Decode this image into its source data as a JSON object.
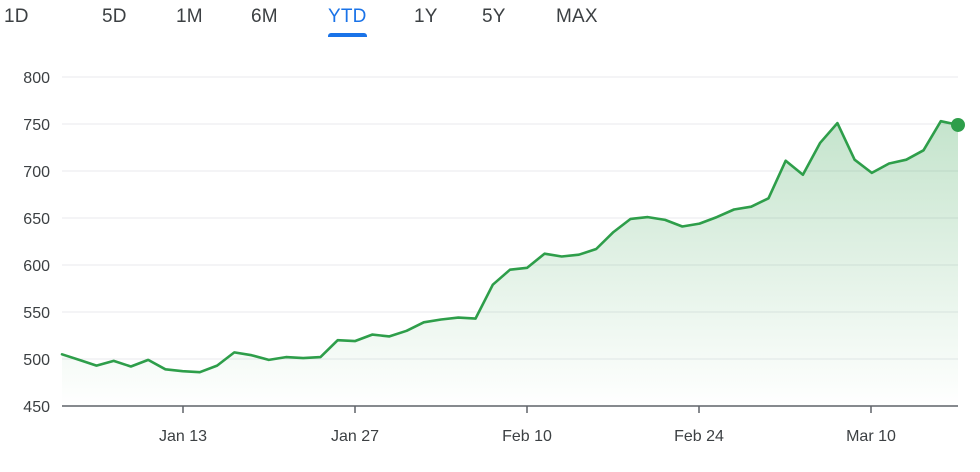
{
  "range_tabs": {
    "selected": "YTD",
    "items": [
      {
        "id": "1d",
        "label": "1D"
      },
      {
        "id": "5d",
        "label": "5D"
      },
      {
        "id": "1m",
        "label": "1M"
      },
      {
        "id": "6m",
        "label": "6M"
      },
      {
        "id": "ytd",
        "label": "YTD"
      },
      {
        "id": "1y",
        "label": "1Y"
      },
      {
        "id": "5y",
        "label": "5Y"
      },
      {
        "id": "max",
        "label": "MAX"
      }
    ]
  },
  "colors": {
    "line": "#2e9e4a",
    "fill": "#2e9e4a",
    "grid": "#e8eaed",
    "axis": "#5f6368",
    "active_tab": "#1a73e8"
  },
  "chart_data": {
    "type": "area",
    "title": "",
    "xlabel": "",
    "ylabel": "",
    "ylim": [
      450,
      800
    ],
    "yticks": [
      800,
      750,
      700,
      650,
      600,
      550,
      500,
      450
    ],
    "xticks": [
      "Jan 13",
      "Jan 27",
      "Feb 10",
      "Feb 24",
      "Mar 10"
    ],
    "grid": true,
    "end_marker": true,
    "series": [
      {
        "values": [
          505,
          499,
          493,
          498,
          492,
          499,
          489,
          487,
          486,
          493,
          507,
          504,
          499,
          502,
          501,
          502,
          520,
          519,
          526,
          524,
          530,
          539,
          542,
          544,
          543,
          579,
          595,
          597,
          612,
          609,
          611,
          617,
          635,
          649,
          651,
          648,
          641,
          644,
          651,
          659,
          662,
          671,
          711,
          696,
          730,
          751,
          712,
          698,
          708,
          712,
          722,
          753,
          749
        ]
      }
    ]
  }
}
